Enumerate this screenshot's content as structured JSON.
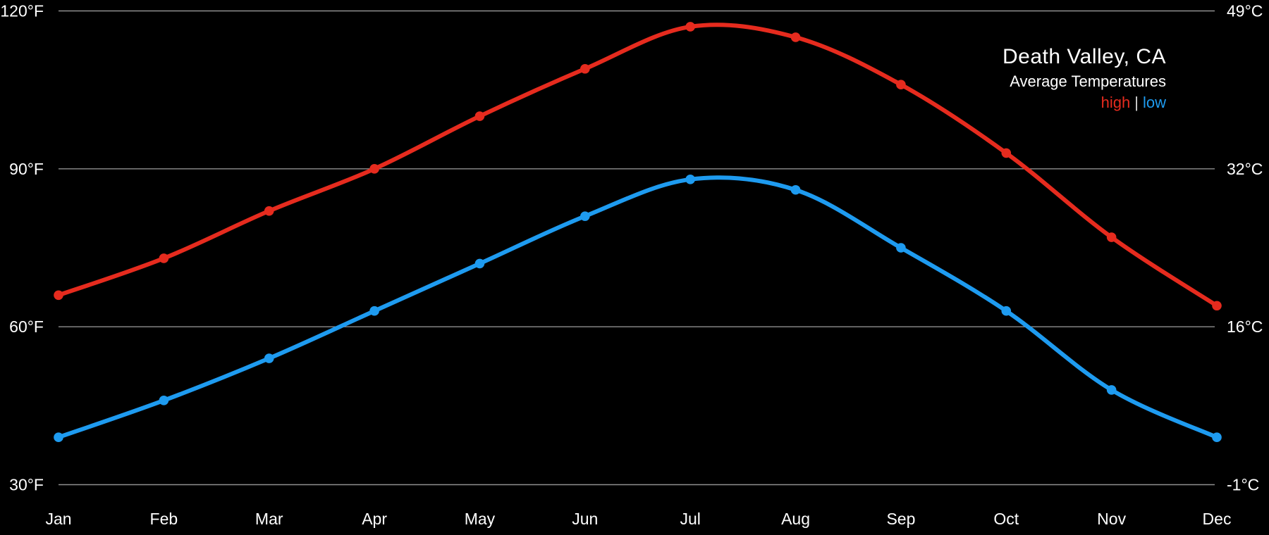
{
  "chart_data": {
    "type": "line",
    "title": "Death Valley, CA",
    "subtitle": "Average Temperatures",
    "legend": {
      "position": "top-right",
      "high_label": "high",
      "separator": "|",
      "low_label": "low"
    },
    "categories": [
      "Jan",
      "Feb",
      "Mar",
      "Apr",
      "May",
      "Jun",
      "Jul",
      "Aug",
      "Sep",
      "Oct",
      "Nov",
      "Dec"
    ],
    "series": [
      {
        "name": "high",
        "color": "#e62b1e",
        "values_f": [
          66,
          73,
          82,
          90,
          100,
          109,
          117,
          115,
          106,
          93,
          77,
          64
        ]
      },
      {
        "name": "low",
        "color": "#1e9bf0",
        "values_f": [
          39,
          46,
          54,
          63,
          72,
          81,
          88,
          86,
          75,
          63,
          48,
          39
        ]
      }
    ],
    "y_axis": {
      "unit_left": "°F",
      "unit_right": "°C",
      "ylim_f": [
        30,
        120
      ],
      "ticks": [
        {
          "f": 120,
          "label_left": "120°F",
          "label_right": "49°C"
        },
        {
          "f": 90,
          "label_left": "90°F",
          "label_right": "32°C"
        },
        {
          "f": 60,
          "label_left": "60°F",
          "label_right": "16°C"
        },
        {
          "f": 30,
          "label_left": "30°F",
          "label_right": "-1°C"
        }
      ]
    },
    "grid": "horizontal-only",
    "colors": {
      "background": "#000000",
      "gridline": "#8f8f8f",
      "text": "#ffffff",
      "legend_separator": "#d8d8d8"
    }
  }
}
